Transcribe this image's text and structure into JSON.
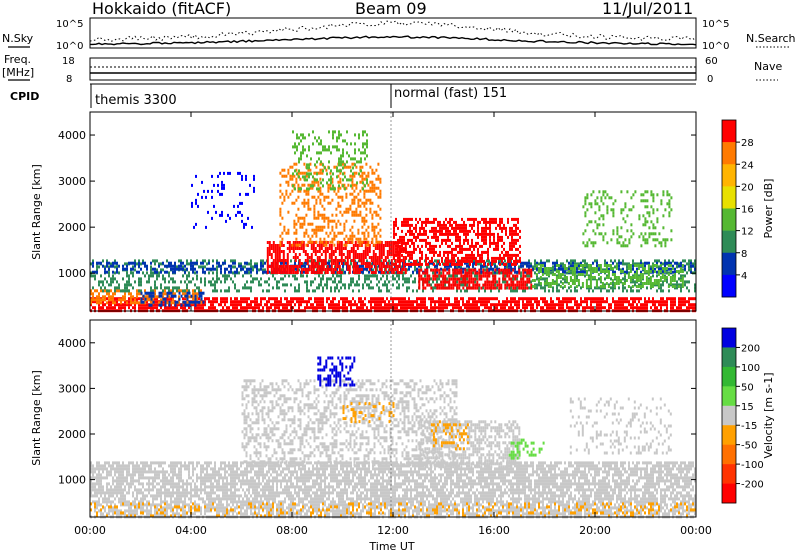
{
  "header": {
    "station": "Hokkaido (fitACF)",
    "beam": "Beam 09",
    "date": "11/Jul/2011"
  },
  "top_panels": {
    "nsky_label": "N.Sky",
    "nsky_ticks": [
      "10^5",
      "10^0"
    ],
    "nsearch_label": "N.Search",
    "freq_label": "Freq.",
    "freq_unit": "[MHz]",
    "freq_ticks": [
      "18",
      "8"
    ],
    "nave_label": "Nave",
    "nave_ticks": [
      "60",
      "0"
    ],
    "cpid_label": "CPID",
    "cpid_entries": [
      "themis 3300",
      "normal (fast) 151"
    ]
  },
  "time_axis": {
    "label": "Time UT",
    "ticks": [
      "00:00",
      "04:00",
      "08:00",
      "12:00",
      "16:00",
      "20:00",
      "00:00"
    ]
  },
  "chart_data": [
    {
      "type": "heatmap",
      "name": "power",
      "ylabel": "Slant Range [km]",
      "yticks": [
        1000,
        2000,
        3000,
        4000
      ],
      "ylim": [
        180,
        4500
      ],
      "xlim_hours": [
        0,
        24
      ],
      "colorbar": {
        "label": "Power [dB]",
        "ticks": [
          "28",
          "24",
          "20",
          "16",
          "12",
          "8",
          "4"
        ],
        "colors": [
          "#ff0000",
          "#ff7a00",
          "#ffb400",
          "#e8e000",
          "#55b832",
          "#2e8b57",
          "#0033b0",
          "#0000ff"
        ]
      },
      "regions": [
        {
          "x": [
            0.0,
            24.0
          ],
          "y": [
            180,
            480
          ],
          "color": "#ff0000",
          "density": 0.75
        },
        {
          "x": [
            0.0,
            4.5
          ],
          "y": [
            350,
            650
          ],
          "color": "#ff7a00",
          "density": 0.55
        },
        {
          "x": [
            0.0,
            24.0
          ],
          "y": [
            600,
            1300
          ],
          "color": "#2e8b57",
          "density": 0.38
        },
        {
          "x": [
            0.0,
            24.0
          ],
          "y": [
            1000,
            1250
          ],
          "color": "#0033b0",
          "density": 0.4
        },
        {
          "x": [
            2.0,
            4.5
          ],
          "y": [
            300,
            600
          ],
          "color": "#0033b0",
          "density": 0.5
        },
        {
          "x": [
            7.0,
            12.5
          ],
          "y": [
            1000,
            1700
          ],
          "color": "#ff0000",
          "density": 0.62
        },
        {
          "x": [
            7.5,
            11.5
          ],
          "y": [
            1600,
            3400
          ],
          "color": "#ff7a00",
          "density": 0.35
        },
        {
          "x": [
            8.0,
            11.0
          ],
          "y": [
            2800,
            4100
          ],
          "color": "#55b832",
          "density": 0.25
        },
        {
          "x": [
            12.0,
            17.0
          ],
          "y": [
            1200,
            2200
          ],
          "color": "#ff0000",
          "density": 0.55
        },
        {
          "x": [
            13.0,
            17.5
          ],
          "y": [
            700,
            1100
          ],
          "color": "#ff0000",
          "density": 0.65
        },
        {
          "x": [
            17.5,
            23.5
          ],
          "y": [
            700,
            1200
          ],
          "color": "#55b832",
          "density": 0.45
        },
        {
          "x": [
            19.5,
            23.0
          ],
          "y": [
            1600,
            2800
          ],
          "color": "#55b832",
          "density": 0.22
        },
        {
          "x": [
            4.0,
            6.5
          ],
          "y": [
            2000,
            3200
          ],
          "color": "#0000ff",
          "density": 0.12
        }
      ]
    },
    {
      "type": "heatmap",
      "name": "velocity",
      "ylabel": "Slant Range [km]",
      "yticks": [
        1000,
        2000,
        3000,
        4000
      ],
      "ylim": [
        180,
        4500
      ],
      "xlim_hours": [
        0,
        24
      ],
      "colorbar": {
        "label": "Velocity [m s-1]",
        "ticks": [
          "200",
          "100",
          "50",
          "15",
          "-15",
          "-50",
          "-100",
          "-200"
        ],
        "colors": [
          "#0000e0",
          "#2e8b57",
          "#33b833",
          "#66dd44",
          "#c8c8c8",
          "#ffa000",
          "#ff7000",
          "#ff3300",
          "#ff0000"
        ]
      },
      "regions": [
        {
          "x": [
            0.0,
            24.0
          ],
          "y": [
            180,
            1400
          ],
          "color": "#c8c8c8",
          "density": 0.72
        },
        {
          "x": [
            6.0,
            14.5
          ],
          "y": [
            1300,
            3200
          ],
          "color": "#c8c8c8",
          "density": 0.4
        },
        {
          "x": [
            13.0,
            17.0
          ],
          "y": [
            1300,
            2300
          ],
          "color": "#c8c8c8",
          "density": 0.55
        },
        {
          "x": [
            9.0,
            10.5
          ],
          "y": [
            3100,
            3700
          ],
          "color": "#0000e0",
          "density": 0.45
        },
        {
          "x": [
            0.0,
            24.0
          ],
          "y": [
            180,
            500
          ],
          "color": "#ffa000",
          "density": 0.2
        },
        {
          "x": [
            13.5,
            15.0
          ],
          "y": [
            1700,
            2300
          ],
          "color": "#ffa000",
          "density": 0.3
        },
        {
          "x": [
            10.0,
            12.0
          ],
          "y": [
            2300,
            2700
          ],
          "color": "#ffa000",
          "density": 0.2
        },
        {
          "x": [
            16.5,
            18.0
          ],
          "y": [
            1500,
            1900
          ],
          "color": "#66dd44",
          "density": 0.25
        },
        {
          "x": [
            19.0,
            23.0
          ],
          "y": [
            1600,
            2800
          ],
          "color": "#c8c8c8",
          "density": 0.2
        }
      ]
    }
  ]
}
